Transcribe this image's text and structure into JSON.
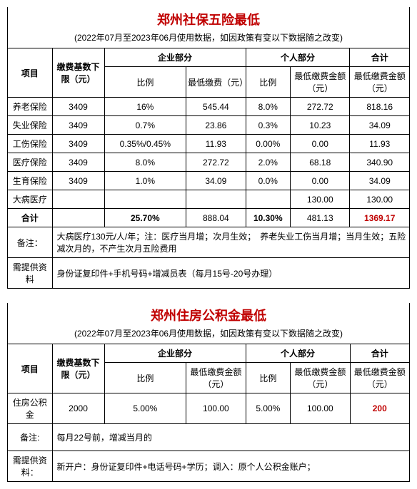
{
  "social": {
    "title": "郑州社保五险最低",
    "subtitle": "(2022年07月至2023年06月使用数据，如因政策有变以下数据随之改变)",
    "headers": {
      "item": "项目",
      "base": "缴费基数下限（元）",
      "corp": "企业部分",
      "corp_rate": "比例",
      "corp_min": "最低缴费（元）",
      "pers": "个人部分",
      "pers_rate": "比例",
      "pers_min": "最低缴费金额（元）",
      "total": "合计",
      "total_min": "最低缴费金额（元）"
    },
    "rows": [
      {
        "item": "养老保险",
        "base": "3409",
        "cr": "16%",
        "cm": "545.44",
        "pr": "8.0%",
        "pm": "272.72",
        "tot": "818.16"
      },
      {
        "item": "失业保险",
        "base": "3409",
        "cr": "0.7%",
        "cm": "23.86",
        "pr": "0.3%",
        "pm": "10.23",
        "tot": "34.09"
      },
      {
        "item": "工伤保险",
        "base": "3409",
        "cr": "0.35%/0.45%",
        "cm": "11.93",
        "pr": "0.00%",
        "pm": "0.00",
        "tot": "11.93"
      },
      {
        "item": "医疗保险",
        "base": "3409",
        "cr": "8.0%",
        "cm": "272.72",
        "pr": "2.0%",
        "pm": "68.18",
        "tot": "340.90"
      },
      {
        "item": "生育保险",
        "base": "3409",
        "cr": "1.0%",
        "cm": "34.09",
        "pr": "0.0%",
        "pm": "0.00",
        "tot": "34.09"
      },
      {
        "item": "大病医疗",
        "base": "",
        "cr": "",
        "cm": "",
        "pr": "",
        "pm": "130.00",
        "tot": "130.00"
      }
    ],
    "sum": {
      "label": "合计",
      "cr": "25.70%",
      "cm": "888.04",
      "pr": "10.30%",
      "pm": "481.13",
      "tot": "1369.17"
    },
    "note_label": "备注：",
    "note": "大病医疗130元/人/年；注：医疗当月增；次月生效；　养老失业工伤当月增；当月生效；五险减次月的，不产生次月五险费用",
    "doc_label": "需提供资料",
    "doc": "身份证复印件+手机号码+增减员表（每月15号-20号办理）"
  },
  "fund": {
    "title": "郑州住房公积金最低",
    "subtitle": "(2022年07月至2023年06月使用数据，如因政策有变以下数据随之改变)",
    "headers": {
      "item": "项目",
      "base": "缴费基数下限（元）",
      "corp": "企业部分",
      "corp_rate": "比例",
      "corp_min": "最低缴费金额（元）",
      "pers": "个人部分",
      "pers_rate": "比例",
      "pers_min": "最低缴费金额（元）",
      "total": "合计",
      "total_min": "最低缴费金额（元）"
    },
    "row": {
      "item": "住房公积金",
      "base": "2000",
      "cr": "5.00%",
      "cm": "100.00",
      "pr": "5.00%",
      "pm": "100.00",
      "tot": "200"
    },
    "note_label": "备注:",
    "note": "每月22号前，增减当月的",
    "doc_label": "需提供资料：",
    "doc": "新开户：身份证复印件+电话号码+学历；调入：原个人公积金账户；"
  },
  "colwidths": {
    "c1": 60,
    "c2": 70,
    "c3": 110,
    "c4": 80,
    "c5": 60,
    "c6": 80,
    "c7": 80
  }
}
